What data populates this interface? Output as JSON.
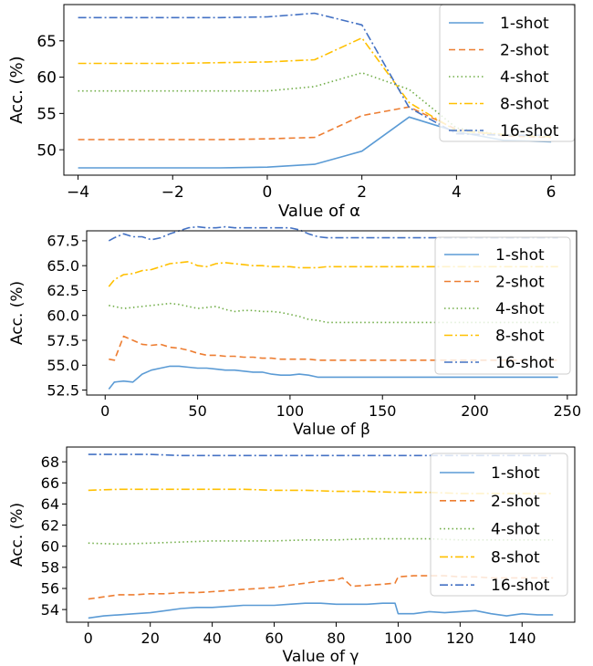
{
  "colors": {
    "1-shot": "#5b9bd5",
    "2-shot": "#ed7d31",
    "4-shot": "#70ad47",
    "8-shot": "#ffc000",
    "16-shot": "#4472c4"
  },
  "chart_data": [
    {
      "type": "line",
      "xlabel": "Value of α",
      "ylabel": "Acc. (%)",
      "xlim": [
        -4.3,
        6.5
      ],
      "ylim": [
        46.5,
        70.0
      ],
      "xticks": [
        -4,
        -2,
        0,
        2,
        4,
        6
      ],
      "xtick_labels": [
        "−4",
        "−2",
        "0",
        "2",
        "4",
        "6"
      ],
      "yticks": [
        50,
        55,
        60,
        65
      ],
      "ytick_labels": [
        "50",
        "55",
        "60",
        "65"
      ],
      "legend": "top-right",
      "series": [
        {
          "name": "1-shot",
          "style": "solid",
          "x": [
            -4,
            -3,
            -2,
            -1,
            0,
            1,
            2,
            3,
            4,
            5,
            6
          ],
          "y": [
            47.5,
            47.5,
            47.5,
            47.5,
            47.6,
            48.0,
            49.8,
            54.5,
            52.5,
            51.3,
            51.1
          ]
        },
        {
          "name": "2-shot",
          "style": "dashed",
          "x": [
            -4,
            -3,
            -2,
            -1,
            0,
            1,
            2,
            3,
            4,
            5,
            6
          ],
          "y": [
            51.4,
            51.4,
            51.4,
            51.4,
            51.5,
            51.7,
            54.7,
            55.9,
            52.8,
            51.9,
            51.7
          ]
        },
        {
          "name": "4-shot",
          "style": "dotted",
          "x": [
            -4,
            -3,
            -2,
            -1,
            0,
            1,
            2,
            3,
            4,
            5,
            6
          ],
          "y": [
            58.1,
            58.1,
            58.1,
            58.1,
            58.1,
            58.7,
            60.6,
            58.3,
            53.0,
            52.0,
            51.8
          ]
        },
        {
          "name": "8-shot",
          "style": "dashdot",
          "x": [
            -4,
            -3,
            -2,
            -1,
            0,
            1,
            2,
            3,
            4,
            5,
            6
          ],
          "y": [
            61.9,
            61.9,
            61.9,
            62.0,
            62.1,
            62.4,
            65.4,
            56.5,
            52.6,
            52.1,
            51.8
          ]
        },
        {
          "name": "16-shot",
          "style": "dashdot",
          "x": [
            -4,
            -3,
            -2,
            -1,
            0,
            1,
            2,
            3,
            4,
            5,
            6
          ],
          "y": [
            68.2,
            68.2,
            68.2,
            68.2,
            68.3,
            68.8,
            67.2,
            55.8,
            52.2,
            52.0,
            52.0
          ]
        }
      ]
    },
    {
      "type": "line",
      "xlabel": "Value of β",
      "ylabel": "Acc. (%)",
      "xlim": [
        -10,
        255
      ],
      "ylim": [
        52.0,
        68.5
      ],
      "xticks": [
        0,
        50,
        100,
        150,
        200,
        250
      ],
      "xtick_labels": [
        "0",
        "50",
        "100",
        "150",
        "200",
        "250"
      ],
      "yticks": [
        52.5,
        55.0,
        57.5,
        60.0,
        62.5,
        65.0,
        67.5
      ],
      "ytick_labels": [
        "52.5",
        "55.0",
        "57.5",
        "60.0",
        "62.5",
        "65.0",
        "67.5"
      ],
      "legend": "top-right",
      "series": [
        {
          "name": "1-shot",
          "style": "solid",
          "x": [
            2,
            5,
            10,
            15,
            20,
            25,
            30,
            35,
            40,
            45,
            50,
            55,
            60,
            65,
            70,
            75,
            80,
            85,
            90,
            95,
            100,
            105,
            110,
            115,
            120,
            125,
            130,
            150,
            200,
            245
          ],
          "y": [
            52.6,
            53.3,
            53.4,
            53.3,
            54.1,
            54.5,
            54.7,
            54.9,
            54.9,
            54.8,
            54.7,
            54.7,
            54.6,
            54.5,
            54.5,
            54.4,
            54.3,
            54.3,
            54.1,
            54.0,
            54.0,
            54.1,
            54.0,
            53.8,
            53.8,
            53.8,
            53.8,
            53.8,
            53.8,
            53.8
          ]
        },
        {
          "name": "2-shot",
          "style": "dashed",
          "x": [
            2,
            5,
            10,
            15,
            20,
            25,
            30,
            35,
            40,
            45,
            50,
            55,
            60,
            65,
            70,
            75,
            80,
            85,
            90,
            95,
            100,
            105,
            110,
            115,
            120,
            125,
            130,
            150,
            200,
            245
          ],
          "y": [
            55.6,
            55.5,
            57.9,
            57.5,
            57.1,
            57.0,
            57.1,
            56.8,
            56.7,
            56.5,
            56.2,
            56.0,
            56.0,
            55.9,
            55.9,
            55.8,
            55.8,
            55.7,
            55.7,
            55.6,
            55.6,
            55.6,
            55.6,
            55.5,
            55.5,
            55.5,
            55.5,
            55.5,
            55.5,
            55.5
          ]
        },
        {
          "name": "4-shot",
          "style": "dotted",
          "x": [
            2,
            5,
            10,
            15,
            20,
            25,
            30,
            35,
            40,
            45,
            50,
            55,
            60,
            65,
            70,
            75,
            80,
            85,
            90,
            95,
            100,
            105,
            110,
            115,
            120,
            125,
            130,
            150,
            200,
            245
          ],
          "y": [
            61.0,
            60.9,
            60.7,
            60.8,
            60.9,
            61.0,
            61.1,
            61.2,
            61.1,
            60.9,
            60.7,
            60.8,
            60.9,
            60.6,
            60.4,
            60.5,
            60.5,
            60.4,
            60.4,
            60.3,
            60.1,
            59.9,
            59.6,
            59.5,
            59.3,
            59.3,
            59.3,
            59.3,
            59.3,
            59.3
          ]
        },
        {
          "name": "8-shot",
          "style": "dashdot",
          "x": [
            2,
            5,
            10,
            15,
            20,
            25,
            30,
            35,
            40,
            45,
            50,
            55,
            60,
            65,
            70,
            75,
            80,
            85,
            90,
            95,
            100,
            105,
            110,
            115,
            120,
            125,
            130,
            150,
            200,
            245
          ],
          "y": [
            62.9,
            63.6,
            64.1,
            64.2,
            64.5,
            64.6,
            64.9,
            65.2,
            65.3,
            65.4,
            65.0,
            64.9,
            65.2,
            65.3,
            65.2,
            65.1,
            65.0,
            65.0,
            64.9,
            64.9,
            64.9,
            64.8,
            64.8,
            64.8,
            64.9,
            64.9,
            64.9,
            64.9,
            64.9,
            64.9
          ]
        },
        {
          "name": "16-shot",
          "style": "dashdot",
          "x": [
            2,
            5,
            10,
            15,
            20,
            25,
            30,
            35,
            40,
            45,
            50,
            55,
            60,
            65,
            70,
            75,
            80,
            85,
            90,
            95,
            100,
            105,
            110,
            115,
            120,
            125,
            130,
            150,
            200,
            245
          ],
          "y": [
            67.5,
            67.8,
            68.2,
            67.9,
            67.9,
            67.6,
            67.8,
            68.2,
            68.5,
            68.8,
            68.9,
            68.8,
            68.8,
            68.9,
            68.8,
            68.8,
            68.8,
            68.8,
            68.8,
            68.8,
            68.8,
            68.6,
            68.2,
            67.9,
            67.8,
            67.8,
            67.8,
            67.8,
            67.8,
            67.8
          ]
        }
      ]
    },
    {
      "type": "line",
      "xlabel": "Value of γ",
      "ylabel": "Acc. (%)",
      "xlim": [
        -7,
        157
      ],
      "ylim": [
        52.8,
        69.4
      ],
      "xticks": [
        0,
        20,
        40,
        60,
        80,
        100,
        120,
        140
      ],
      "xtick_labels": [
        "0",
        "20",
        "40",
        "60",
        "80",
        "100",
        "120",
        "140"
      ],
      "yticks": [
        54,
        56,
        58,
        60,
        62,
        64,
        66,
        68
      ],
      "ytick_labels": [
        "54",
        "56",
        "58",
        "60",
        "62",
        "64",
        "66",
        "68"
      ],
      "legend": "top-right",
      "series": [
        {
          "name": "1-shot",
          "style": "solid",
          "x": [
            0,
            5,
            10,
            15,
            20,
            25,
            30,
            35,
            40,
            45,
            50,
            55,
            60,
            65,
            70,
            75,
            80,
            85,
            90,
            95,
            99,
            100,
            105,
            110,
            115,
            120,
            125,
            130,
            135,
            140,
            145,
            150
          ],
          "y": [
            53.2,
            53.4,
            53.5,
            53.6,
            53.7,
            53.9,
            54.1,
            54.2,
            54.2,
            54.3,
            54.4,
            54.4,
            54.4,
            54.5,
            54.6,
            54.6,
            54.5,
            54.5,
            54.5,
            54.6,
            54.6,
            53.6,
            53.6,
            53.8,
            53.7,
            53.8,
            53.9,
            53.6,
            53.4,
            53.6,
            53.5,
            53.5
          ]
        },
        {
          "name": "2-shot",
          "style": "dashed",
          "x": [
            0,
            5,
            10,
            15,
            20,
            25,
            30,
            35,
            40,
            45,
            50,
            55,
            60,
            65,
            70,
            75,
            80,
            82,
            85,
            90,
            95,
            99,
            100,
            105,
            110,
            115,
            120,
            125,
            130,
            135,
            140,
            145,
            150
          ],
          "y": [
            55.0,
            55.2,
            55.4,
            55.4,
            55.5,
            55.5,
            55.6,
            55.6,
            55.7,
            55.8,
            55.9,
            56.0,
            56.1,
            56.3,
            56.5,
            56.7,
            56.8,
            57.0,
            56.2,
            56.3,
            56.4,
            56.5,
            57.1,
            57.2,
            57.2,
            57.2,
            57.1,
            57.1,
            57.0,
            57.0,
            57.0,
            57.0,
            57.0
          ]
        },
        {
          "name": "4-shot",
          "style": "dotted",
          "x": [
            0,
            10,
            20,
            30,
            40,
            50,
            60,
            70,
            80,
            90,
            100,
            110,
            120,
            130,
            140,
            150
          ],
          "y": [
            60.3,
            60.2,
            60.3,
            60.4,
            60.5,
            60.5,
            60.5,
            60.6,
            60.6,
            60.7,
            60.7,
            60.7,
            60.6,
            60.6,
            60.6,
            60.6
          ]
        },
        {
          "name": "8-shot",
          "style": "dashdot",
          "x": [
            0,
            10,
            20,
            30,
            40,
            50,
            60,
            70,
            80,
            90,
            100,
            110,
            120,
            130,
            140,
            150
          ],
          "y": [
            65.3,
            65.4,
            65.4,
            65.4,
            65.4,
            65.4,
            65.3,
            65.3,
            65.2,
            65.2,
            65.1,
            65.1,
            65.0,
            65.0,
            65.0,
            65.0
          ]
        },
        {
          "name": "16-shot",
          "style": "dashdot",
          "x": [
            0,
            10,
            20,
            30,
            40,
            50,
            60,
            70,
            80,
            90,
            100,
            110,
            120,
            130,
            140,
            150
          ],
          "y": [
            68.7,
            68.7,
            68.7,
            68.6,
            68.6,
            68.6,
            68.6,
            68.6,
            68.6,
            68.6,
            68.6,
            68.6,
            68.6,
            68.6,
            68.6,
            68.6
          ]
        }
      ]
    }
  ]
}
